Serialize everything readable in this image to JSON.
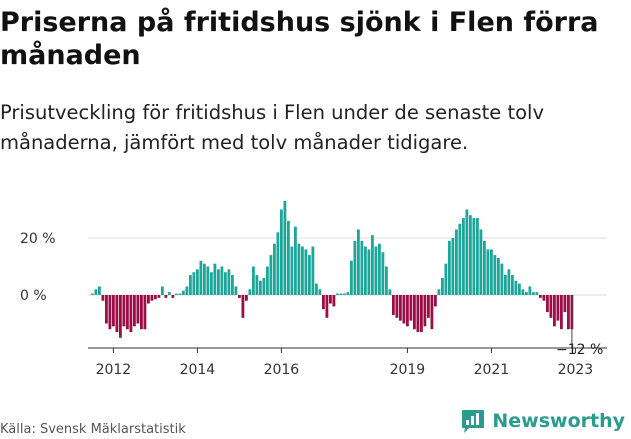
{
  "title": "Priserna på fritidshus sjönk i Flen förra månaden",
  "subtitle": "Prisutveckling för fritidshus i Flen under de senaste tolv månaderna, jämfört med tolv månader tidigare.",
  "source": "Källa: Svensk Mäklarstatistik",
  "brand": {
    "name": "Newsworthy",
    "logo_icon": "newsworthy-logo-icon"
  },
  "colors": {
    "positive": "#1fa69a",
    "negative": "#9b0d45",
    "grid": "#dddddd",
    "axis": "#333333"
  },
  "chart_data": {
    "type": "bar",
    "title": "Priserna på fritidshus sjönk i Flen förra månaden",
    "subtitle": "Prisutveckling för fritidshus i Flen under de senaste tolv månaderna, jämfört med tolv månader tidigare.",
    "xlabel": "",
    "ylabel": "",
    "ylim": [
      -18,
      37
    ],
    "yticks": [
      0,
      20
    ],
    "ytick_labels": [
      "0 %",
      "20 %"
    ],
    "x_start": "2011-07",
    "x_end": "2023-09",
    "xtick_labels": [
      "2012",
      "2014",
      "2016",
      "2019",
      "2021",
      "2023"
    ],
    "xtick_positions": [
      "2012-01",
      "2014-01",
      "2016-01",
      "2019-01",
      "2021-01",
      "2023-01"
    ],
    "grid": true,
    "legend": "none",
    "last_value_label": "−12 %",
    "values": [
      0.5,
      2,
      3,
      -2,
      -10,
      -12,
      -11,
      -13,
      -15,
      -11,
      -12,
      -13,
      -11,
      -10,
      -12,
      -12,
      -3,
      -2,
      -1.5,
      -1,
      3,
      -1,
      1,
      -1,
      0.5,
      0.5,
      1.5,
      3,
      7,
      8,
      9,
      12,
      11,
      10,
      8,
      11,
      9,
      10,
      8,
      9,
      7,
      3,
      -1,
      -8,
      -2,
      2,
      10,
      7,
      5,
      6,
      10,
      14,
      18,
      22,
      30,
      33,
      26,
      17,
      24,
      18,
      17,
      16,
      14,
      17,
      4,
      2,
      -5,
      -8,
      -3,
      -4,
      0.5,
      0.5,
      0.5,
      1,
      12,
      19,
      23,
      19,
      17,
      16,
      21,
      17,
      18,
      15,
      10,
      2,
      -7,
      -8,
      -9,
      -10,
      -11,
      -9,
      -12,
      -13,
      -13,
      -11,
      -8,
      -12,
      -4,
      2,
      6,
      11,
      19,
      20,
      23,
      25,
      27,
      30,
      28,
      27,
      27,
      23,
      19,
      16,
      16,
      14,
      13,
      11,
      7,
      9,
      7,
      5,
      4,
      2,
      1,
      3,
      1,
      1,
      -1,
      -2,
      -6,
      -8,
      -11,
      -9,
      -12,
      -6,
      -12,
      -12
    ]
  }
}
